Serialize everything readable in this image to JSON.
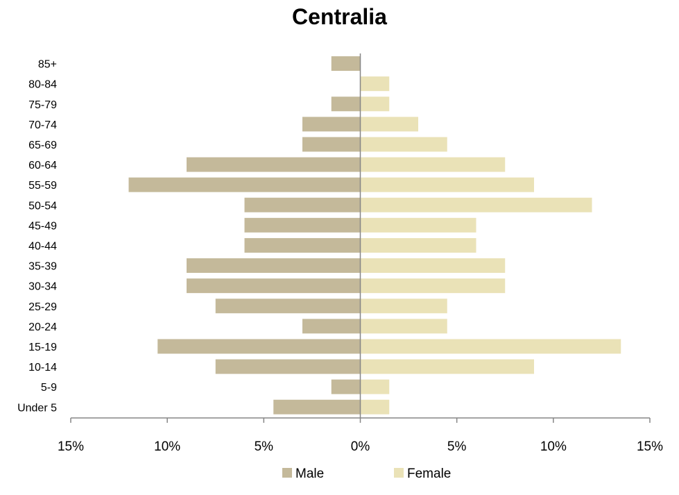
{
  "chart_data": {
    "type": "bar",
    "orientation": "horizontal",
    "title": "Centralia",
    "categories": [
      "85+",
      "80-84",
      "75-79",
      "70-74",
      "65-69",
      "60-64",
      "55-59",
      "50-54",
      "45-49",
      "40-44",
      "35-39",
      "30-34",
      "25-29",
      "20-24",
      "15-19",
      "10-14",
      "5-9",
      "Under 5"
    ],
    "series": [
      {
        "name": "Male",
        "color": "#C4B99A",
        "values": [
          1.5,
          0,
          1.5,
          3.0,
          3.0,
          9.0,
          12.0,
          6.0,
          6.0,
          6.0,
          9.0,
          9.0,
          7.5,
          3.0,
          10.5,
          7.5,
          1.5,
          4.5
        ]
      },
      {
        "name": "Female",
        "color": "#EAE2B7",
        "values": [
          0,
          1.5,
          1.5,
          3.0,
          4.5,
          7.5,
          9.0,
          12.0,
          6.0,
          6.0,
          7.5,
          7.5,
          4.5,
          4.5,
          13.5,
          9.0,
          1.5,
          1.5
        ]
      }
    ],
    "xlim": [
      -15,
      15
    ],
    "x_ticks": [
      -15,
      -10,
      -5,
      0,
      5,
      10,
      15
    ],
    "x_tick_labels": [
      "15%",
      "10%",
      "5%",
      "0%",
      "5%",
      "10%",
      "15%"
    ],
    "grid": false,
    "legend_position": "bottom"
  }
}
